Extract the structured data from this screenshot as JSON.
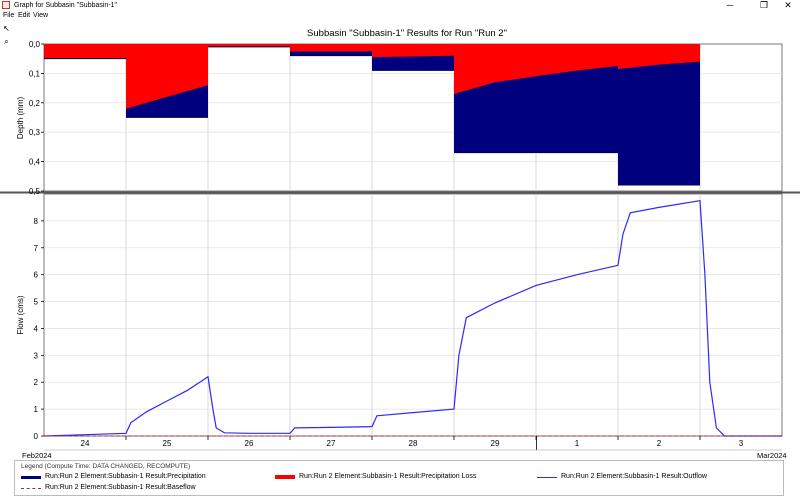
{
  "window": {
    "title": "Graph for Subbasin \"Subbasin-1\"",
    "minimize": "─",
    "maximize": "❐",
    "close": "✕"
  },
  "menu": {
    "items": [
      "File",
      "Edit",
      "View"
    ]
  },
  "tools": {
    "pointer": "↖",
    "zoom": "⌕"
  },
  "chart": {
    "title": "Subbasin \"Subbasin-1\" Results for Run \"Run 2\"",
    "top_ylabel": "Depth (mm)",
    "bottom_ylabel": "Flow (cms)",
    "month_labels": [
      "Feb2024",
      "Mar2024"
    ],
    "legend_title": "Legend (Compute Time: DATA CHANGED, RECOMPUTE)",
    "legend": [
      {
        "label": "Run:Run 2 Element:Subbasin-1 Result:Precipitation",
        "color": "#00007f",
        "style": "solid-thick"
      },
      {
        "label": "Run:Run 2 Element:Subbasin-1 Result:Precipitation Loss",
        "color": "#ff0000",
        "style": "solid-thick"
      },
      {
        "label": "Run:Run 2 Element:Subbasin-1 Result:Outflow",
        "color": "#2a2aff",
        "style": "solid"
      },
      {
        "label": "Run:Run 2 Element:Subbasin-1 Result:Baseflow",
        "color": "#a03030",
        "style": "dashed"
      }
    ]
  },
  "chart_data": [
    {
      "type": "bar",
      "title": "Subbasin \"Subbasin-1\" Results for Run \"Run 2\"",
      "ylabel": "Depth (mm)",
      "ylim": [
        0,
        0.5
      ],
      "y_inverted": true,
      "y_ticks": [
        "0,0",
        "0,1",
        "0,2",
        "0,3",
        "0,4",
        "0,5"
      ],
      "x_unit": "day",
      "x_range": [
        23.5,
        32.5
      ],
      "series": [
        {
          "name": "Run:Run 2 Element:Subbasin-1 Result:Precipitation",
          "color": "#00007f",
          "intervals": [
            {
              "start": 23.5,
              "end": 24.5,
              "value": 0.05
            },
            {
              "start": 24.5,
              "end": 25.5,
              "value": 0.25
            },
            {
              "start": 25.5,
              "end": 26.5,
              "value": 0.01
            },
            {
              "start": 26.5,
              "end": 27.5,
              "value": 0.04
            },
            {
              "start": 27.5,
              "end": 28.5,
              "value": 0.09
            },
            {
              "start": 28.5,
              "end": 30.5,
              "value": 0.37
            },
            {
              "start": 30.5,
              "end": 31.5,
              "value": 0.48
            }
          ]
        },
        {
          "name": "Run:Run 2 Element:Subbasin-1 Result:Precipitation Loss",
          "color": "#ff0000",
          "points": [
            {
              "x": 23.5,
              "y": 0.048
            },
            {
              "x": 24.5,
              "y": 0.048
            },
            {
              "x": 24.5,
              "y": 0.22
            },
            {
              "x": 25.0,
              "y": 0.18
            },
            {
              "x": 25.5,
              "y": 0.14
            },
            {
              "x": 25.5,
              "y": 0.008
            },
            {
              "x": 26.5,
              "y": 0.008
            },
            {
              "x": 26.5,
              "y": 0.025
            },
            {
              "x": 27.5,
              "y": 0.025
            },
            {
              "x": 27.5,
              "y": 0.045
            },
            {
              "x": 28.5,
              "y": 0.04
            },
            {
              "x": 28.5,
              "y": 0.17
            },
            {
              "x": 29.0,
              "y": 0.13
            },
            {
              "x": 29.5,
              "y": 0.11
            },
            {
              "x": 30.0,
              "y": 0.09
            },
            {
              "x": 30.5,
              "y": 0.075
            },
            {
              "x": 30.5,
              "y": 0.085
            },
            {
              "x": 31.0,
              "y": 0.07
            },
            {
              "x": 31.5,
              "y": 0.06
            }
          ]
        }
      ]
    },
    {
      "type": "line",
      "ylabel": "Flow (cms)",
      "ylim": [
        0,
        9
      ],
      "y_ticks": [
        0,
        1,
        2,
        3,
        4,
        5,
        6,
        7,
        8
      ],
      "x_unit": "day",
      "x_range": [
        23.5,
        32.5
      ],
      "x_tick_labels": [
        "24",
        "25",
        "26",
        "27",
        "28",
        "29",
        "1",
        "2",
        "3"
      ],
      "series": [
        {
          "name": "Run:Run 2 Element:Subbasin-1 Result:Outflow",
          "color": "#2a2aff",
          "points": [
            {
              "x": 23.5,
              "y": 0.0
            },
            {
              "x": 24.0,
              "y": 0.05
            },
            {
              "x": 24.5,
              "y": 0.1
            },
            {
              "x": 24.56,
              "y": 0.5
            },
            {
              "x": 24.75,
              "y": 0.9
            },
            {
              "x": 25.0,
              "y": 1.3
            },
            {
              "x": 25.25,
              "y": 1.7
            },
            {
              "x": 25.5,
              "y": 2.2
            },
            {
              "x": 25.56,
              "y": 1.0
            },
            {
              "x": 25.6,
              "y": 0.3
            },
            {
              "x": 25.7,
              "y": 0.12
            },
            {
              "x": 26.0,
              "y": 0.1
            },
            {
              "x": 26.5,
              "y": 0.1
            },
            {
              "x": 26.56,
              "y": 0.3
            },
            {
              "x": 27.0,
              "y": 0.32
            },
            {
              "x": 27.5,
              "y": 0.35
            },
            {
              "x": 27.56,
              "y": 0.75
            },
            {
              "x": 28.0,
              "y": 0.87
            },
            {
              "x": 28.5,
              "y": 1.0
            },
            {
              "x": 28.56,
              "y": 3.0
            },
            {
              "x": 28.65,
              "y": 4.4
            },
            {
              "x": 29.0,
              "y": 4.95
            },
            {
              "x": 29.5,
              "y": 5.6
            },
            {
              "x": 30.0,
              "y": 6.0
            },
            {
              "x": 30.5,
              "y": 6.35
            },
            {
              "x": 30.56,
              "y": 7.5
            },
            {
              "x": 30.65,
              "y": 8.3
            },
            {
              "x": 31.0,
              "y": 8.5
            },
            {
              "x": 31.5,
              "y": 8.75
            },
            {
              "x": 31.56,
              "y": 6.0
            },
            {
              "x": 31.62,
              "y": 2.0
            },
            {
              "x": 31.7,
              "y": 0.3
            },
            {
              "x": 31.8,
              "y": 0.0
            },
            {
              "x": 32.5,
              "y": 0.0
            }
          ]
        },
        {
          "name": "Run:Run 2 Element:Subbasin-1 Result:Baseflow",
          "color": "#a03030",
          "points": [
            {
              "x": 23.5,
              "y": 0.0
            },
            {
              "x": 32.5,
              "y": 0.0
            }
          ]
        }
      ]
    }
  ]
}
